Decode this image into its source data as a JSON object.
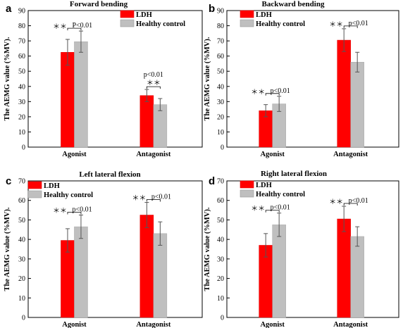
{
  "chart_data": [
    {
      "type": "bar",
      "panel": "a",
      "title": "Forward bending",
      "ylabel": "The AEMG value (%MV).",
      "xlabel": "",
      "ylim": [
        0,
        90
      ],
      "yticks": [
        0,
        10,
        20,
        30,
        40,
        50,
        60,
        70,
        80,
        90
      ],
      "categories": [
        "Agonist",
        "Antagonist"
      ],
      "series": [
        {
          "name": "LDH",
          "values": [
            62.5,
            34
          ],
          "errors": [
            8.5,
            4
          ],
          "color": "#ff0000"
        },
        {
          "name": "Healthy control",
          "values": [
            69.5,
            28
          ],
          "errors": [
            7,
            4
          ],
          "color": "#bfbfbf"
        }
      ],
      "annotations": [
        {
          "category": 0,
          "star": "＊＊",
          "p": "P<0.01",
          "layout": "inline"
        },
        {
          "category": 1,
          "star": "＊＊",
          "p": "p<0.01",
          "layout": "stacked"
        }
      ],
      "legend_position": "top-right"
    },
    {
      "type": "bar",
      "panel": "b",
      "title": "Backward bending",
      "ylabel": "The AEMG value (%MV).",
      "xlabel": "",
      "ylim": [
        0,
        90
      ],
      "yticks": [
        0,
        10,
        20,
        30,
        40,
        50,
        60,
        70,
        80,
        90
      ],
      "categories": [
        "Agonist",
        "Antagonist"
      ],
      "series": [
        {
          "name": "LDH",
          "values": [
            24,
            70.5
          ],
          "errors": [
            4,
            7.5
          ],
          "color": "#ff0000"
        },
        {
          "name": "Healthy control",
          "values": [
            28.5,
            56
          ],
          "errors": [
            5,
            6.5
          ],
          "color": "#bfbfbf"
        }
      ],
      "annotations": [
        {
          "category": 0,
          "star": "＊＊",
          "p": "p<0.01",
          "layout": "inline"
        },
        {
          "category": 1,
          "star": "＊＊",
          "p": "p<0.01",
          "layout": "inline"
        }
      ],
      "legend_position": "top-left"
    },
    {
      "type": "bar",
      "panel": "c",
      "title": "Left lateral flexion",
      "ylabel": "The AEMG value (%MV).",
      "xlabel": "",
      "ylim": [
        0,
        70
      ],
      "yticks": [
        0,
        10,
        20,
        30,
        40,
        50,
        60,
        70
      ],
      "categories": [
        "Agonist",
        "Antagonist"
      ],
      "series": [
        {
          "name": "LDH",
          "values": [
            39.5,
            52.5
          ],
          "errors": [
            6,
            6.5
          ],
          "color": "#ff0000"
        },
        {
          "name": "Healthy control",
          "values": [
            46.5,
            43
          ],
          "errors": [
            6,
            6
          ],
          "color": "#bfbfbf"
        }
      ],
      "annotations": [
        {
          "category": 0,
          "star": "＊＊",
          "p": "p<0.01",
          "layout": "inline"
        },
        {
          "category": 1,
          "star": "＊＊",
          "p": "p<0.01",
          "layout": "inline"
        }
      ],
      "legend_position": "top-left"
    },
    {
      "type": "bar",
      "panel": "d",
      "title": "Right lateral flexion",
      "ylabel": "The AEMG value (%MV).",
      "xlabel": "",
      "ylim": [
        0,
        70
      ],
      "yticks": [
        0,
        10,
        20,
        30,
        40,
        50,
        60,
        70
      ],
      "categories": [
        "Agonist",
        "Antagonist"
      ],
      "series": [
        {
          "name": "LDH",
          "values": [
            37,
            50.5
          ],
          "errors": [
            6,
            6.5
          ],
          "color": "#ff0000"
        },
        {
          "name": "Healthy control",
          "values": [
            47.5,
            41.5
          ],
          "errors": [
            6,
            5
          ],
          "color": "#bfbfbf"
        }
      ],
      "annotations": [
        {
          "category": 0,
          "star": "＊＊",
          "p": "p<0.01",
          "layout": "inline"
        },
        {
          "category": 1,
          "star": "＊＊",
          "p": "p<0.01",
          "layout": "inline"
        }
      ],
      "legend_position": "top-left"
    }
  ]
}
